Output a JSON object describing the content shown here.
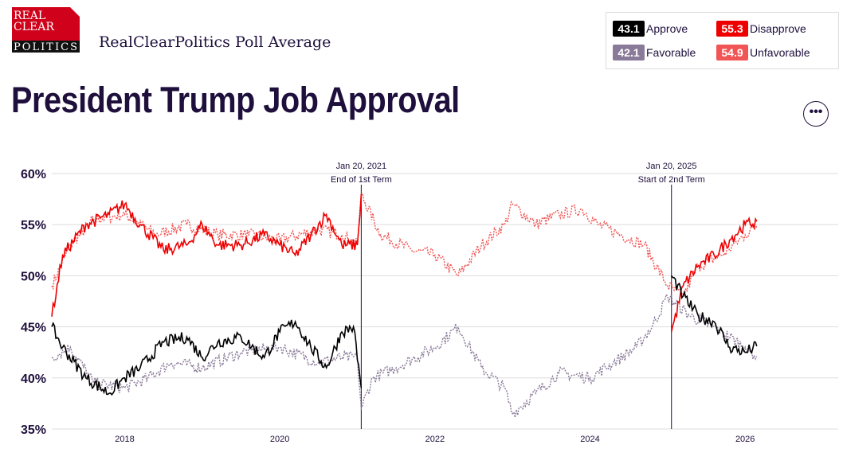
{
  "header": {
    "logo_text": [
      "REAL",
      "CLEAR",
      "POLITICS"
    ],
    "subtitle": "RealClearPolitics Poll Average",
    "title": "President Trump Job Approval",
    "more_label": "•••"
  },
  "legend": [
    {
      "value": "43.1",
      "label": "Approve",
      "color": "#000000"
    },
    {
      "value": "55.3",
      "label": "Disapprove",
      "color": "#ee0000"
    },
    {
      "value": "42.1",
      "label": "Favorable",
      "color": "#8a7a99"
    },
    {
      "value": "54.9",
      "label": "Unfavorable",
      "color": "#f25555"
    }
  ],
  "chart_data": {
    "type": "line",
    "title": "President Trump Job Approval",
    "ylim": [
      35,
      60
    ],
    "xlim": [
      2017.06,
      2027.2
    ],
    "yticks": [
      "60%",
      "55%",
      "50%",
      "45%",
      "40%",
      "35%"
    ],
    "ytick_values": [
      60,
      55,
      50,
      45,
      40,
      35
    ],
    "xticks": [
      "2018",
      "2020",
      "2022",
      "2024",
      "2026"
    ],
    "xtick_values": [
      2018,
      2020,
      2022,
      2024,
      2026
    ],
    "grid": true,
    "annotations": [
      {
        "x": 2021.05,
        "line1": "Jan 20, 2021",
        "line2": "End of 1st Term"
      },
      {
        "x": 2025.05,
        "line1": "Jan 20, 2025",
        "line2": "Start of 2nd Term"
      }
    ],
    "series": [
      {
        "name": "Unfavorable",
        "color": "#f25555",
        "dashed": true,
        "segments": [
          [
            [
              2017.06,
              49
            ],
            [
              2017.3,
              53
            ],
            [
              2017.6,
              55.5
            ],
            [
              2018.0,
              56
            ],
            [
              2018.4,
              54
            ],
            [
              2018.8,
              55
            ],
            [
              2019.2,
              54
            ],
            [
              2019.6,
              54
            ],
            [
              2020.0,
              53.5
            ],
            [
              2020.5,
              54.5
            ],
            [
              2020.8,
              54
            ],
            [
              2021.0,
              53
            ],
            [
              2021.05,
              58
            ],
            [
              2021.3,
              54
            ],
            [
              2021.7,
              52.5
            ],
            [
              2022.0,
              52
            ],
            [
              2022.3,
              50
            ],
            [
              2022.6,
              53
            ],
            [
              2022.9,
              55
            ],
            [
              2023.0,
              57
            ],
            [
              2023.3,
              55
            ],
            [
              2023.6,
              56
            ],
            [
              2023.9,
              56.5
            ],
            [
              2024.1,
              55
            ],
            [
              2024.4,
              54
            ],
            [
              2024.7,
              53
            ],
            [
              2025.0,
              49
            ],
            [
              2025.2,
              48
            ],
            [
              2025.4,
              51
            ],
            [
              2025.7,
              52
            ],
            [
              2026.0,
              54
            ],
            [
              2026.15,
              54.9
            ]
          ]
        ]
      },
      {
        "name": "Favorable",
        "color": "#8a7a99",
        "dashed": true,
        "segments": [
          [
            [
              2017.06,
              42
            ],
            [
              2017.3,
              43
            ],
            [
              2017.6,
              39.5
            ],
            [
              2018.0,
              39
            ],
            [
              2018.3,
              40
            ],
            [
              2018.6,
              41.5
            ],
            [
              2019.0,
              41
            ],
            [
              2019.5,
              42.5
            ],
            [
              2020.0,
              43
            ],
            [
              2020.5,
              41.5
            ],
            [
              2020.8,
              42
            ],
            [
              2021.0,
              42
            ],
            [
              2021.05,
              37
            ],
            [
              2021.2,
              40
            ],
            [
              2021.5,
              41
            ],
            [
              2022.0,
              43
            ],
            [
              2022.3,
              45
            ],
            [
              2022.6,
              41
            ],
            [
              2022.9,
              39
            ],
            [
              2023.0,
              36.5
            ],
            [
              2023.3,
              38.5
            ],
            [
              2023.6,
              40.5
            ],
            [
              2024.0,
              40
            ],
            [
              2024.3,
              41.5
            ],
            [
              2024.6,
              43
            ],
            [
              2024.8,
              45
            ],
            [
              2025.0,
              48
            ],
            [
              2025.3,
              46
            ],
            [
              2025.6,
              45
            ],
            [
              2026.0,
              43
            ],
            [
              2026.15,
              42.1
            ]
          ]
        ]
      },
      {
        "name": "Disapprove",
        "color": "#ee0000",
        "dashed": false,
        "segments": [
          [
            [
              2017.06,
              46
            ],
            [
              2017.2,
              52
            ],
            [
              2017.5,
              55
            ],
            [
              2017.8,
              56
            ],
            [
              2018.0,
              57
            ],
            [
              2018.2,
              55
            ],
            [
              2018.5,
              52.5
            ],
            [
              2018.8,
              53
            ],
            [
              2019.0,
              55
            ],
            [
              2019.2,
              53
            ],
            [
              2019.5,
              53
            ],
            [
              2019.8,
              54
            ],
            [
              2020.0,
              53
            ],
            [
              2020.2,
              52
            ],
            [
              2020.4,
              54
            ],
            [
              2020.6,
              56
            ],
            [
              2020.8,
              53
            ],
            [
              2021.0,
              53
            ],
            [
              2021.05,
              58
            ]
          ],
          [
            [
              2025.05,
              44.5
            ],
            [
              2025.2,
              49
            ],
            [
              2025.4,
              51
            ],
            [
              2025.6,
              52
            ],
            [
              2025.8,
              53.5
            ],
            [
              2026.0,
              55
            ],
            [
              2026.15,
              55.3
            ]
          ]
        ]
      },
      {
        "name": "Approve",
        "color": "#000000",
        "dashed": false,
        "segments": [
          [
            [
              2017.06,
              45
            ],
            [
              2017.2,
              43
            ],
            [
              2017.5,
              40
            ],
            [
              2017.8,
              38.5
            ],
            [
              2018.0,
              40
            ],
            [
              2018.2,
              41
            ],
            [
              2018.5,
              43.5
            ],
            [
              2018.8,
              44
            ],
            [
              2019.0,
              42
            ],
            [
              2019.2,
              43.5
            ],
            [
              2019.5,
              44
            ],
            [
              2019.8,
              42
            ],
            [
              2020.0,
              44.5
            ],
            [
              2020.2,
              45.5
            ],
            [
              2020.4,
              43
            ],
            [
              2020.6,
              41
            ],
            [
              2020.8,
              44.5
            ],
            [
              2020.95,
              45
            ],
            [
              2021.05,
              39
            ]
          ],
          [
            [
              2025.05,
              50
            ],
            [
              2025.2,
              48
            ],
            [
              2025.4,
              46
            ],
            [
              2025.6,
              45.5
            ],
            [
              2025.8,
              43
            ],
            [
              2026.0,
              42.5
            ],
            [
              2026.15,
              43.1
            ]
          ]
        ]
      }
    ]
  }
}
